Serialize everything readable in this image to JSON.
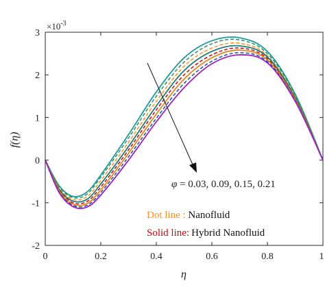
{
  "chart_data": {
    "type": "line",
    "title": "",
    "xlabel": "η",
    "ylabel": "f(η)",
    "xlim": [
      0,
      1
    ],
    "ylim": [
      -2,
      3
    ],
    "exponent_label": "×10",
    "exponent_power": "-3",
    "x_ticks": [
      "0",
      "0.2",
      "0.4",
      "0.6",
      "0.8",
      "1"
    ],
    "y_ticks": [
      "-2",
      "-1",
      "0",
      "1",
      "2",
      "3"
    ],
    "grid": false,
    "annotation": {
      "phi_symbol": "φ",
      "phi_values": " = 0.03, 0.09, 0.15, 0.21"
    },
    "legend": {
      "placement": "lower-right",
      "items": [
        {
          "style_label": "Dot line",
          "separator": " : ",
          "fluid": "Nanofluid",
          "color": "#ff8c1a",
          "dash": true
        },
        {
          "style_label": "Solid line",
          "separator": ":",
          "fluid": "Hybrid Nanofluid",
          "color": "#dd0000",
          "dash": false
        }
      ]
    },
    "x": [
      0,
      0.05,
      0.1,
      0.15,
      0.2,
      0.3,
      0.4,
      0.5,
      0.6,
      0.7,
      0.8,
      0.9,
      1.0
    ],
    "series": [
      {
        "style": "solid",
        "color": "#1a9a9a",
        "values": [
          0,
          -0.6,
          -0.85,
          -0.75,
          -0.35,
          0.6,
          1.6,
          2.4,
          2.8,
          2.87,
          2.55,
          1.55,
          0
        ]
      },
      {
        "style": "dash",
        "color": "#2e8b57",
        "values": [
          0,
          -0.62,
          -0.88,
          -0.8,
          -0.4,
          0.52,
          1.5,
          2.3,
          2.73,
          2.82,
          2.5,
          1.52,
          0
        ]
      },
      {
        "style": "dash",
        "color": "#ff8c1a",
        "values": [
          0,
          -0.65,
          -0.92,
          -0.86,
          -0.48,
          0.42,
          1.38,
          2.2,
          2.63,
          2.74,
          2.45,
          1.48,
          0
        ]
      },
      {
        "style": "solid",
        "color": "#1e7a7a",
        "values": [
          0,
          -0.68,
          -0.96,
          -0.92,
          -0.56,
          0.32,
          1.27,
          2.1,
          2.55,
          2.68,
          2.42,
          1.46,
          0
        ]
      },
      {
        "style": "dash",
        "color": "#dd0000",
        "values": [
          0,
          -0.7,
          -1.0,
          -0.97,
          -0.63,
          0.24,
          1.18,
          2.0,
          2.47,
          2.63,
          2.38,
          1.44,
          0
        ]
      },
      {
        "style": "solid",
        "color": "#e08a1e",
        "values": [
          0,
          -0.72,
          -1.03,
          -1.02,
          -0.7,
          0.16,
          1.08,
          1.9,
          2.4,
          2.58,
          2.35,
          1.42,
          0
        ]
      },
      {
        "style": "dash",
        "color": "#2244cc",
        "values": [
          0,
          -0.74,
          -1.06,
          -1.06,
          -0.76,
          0.08,
          0.98,
          1.8,
          2.32,
          2.52,
          2.31,
          1.4,
          0
        ]
      },
      {
        "style": "solid",
        "color": "#9922bb",
        "values": [
          0,
          -0.76,
          -1.09,
          -1.1,
          -0.82,
          0.0,
          0.9,
          1.7,
          2.26,
          2.47,
          2.28,
          1.38,
          0
        ]
      }
    ]
  }
}
